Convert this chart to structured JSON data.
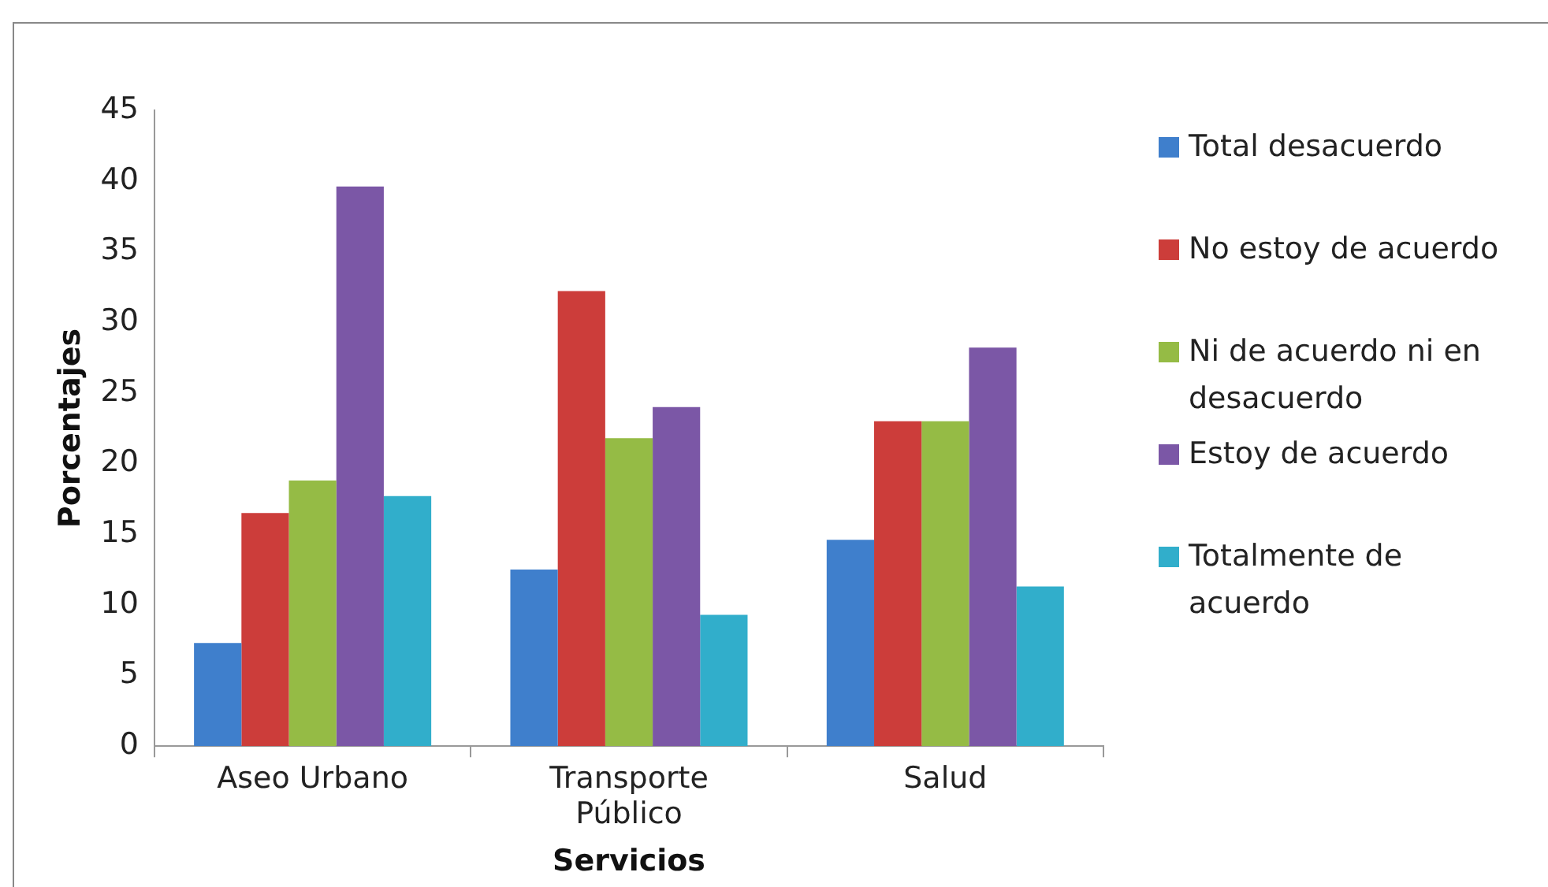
{
  "chart_data": {
    "type": "bar",
    "xlabel": "Servicios",
    "ylabel": "Porcentajes",
    "categories": [
      "Aseo Urbano",
      "Transporte Público",
      "Salud"
    ],
    "series": [
      {
        "name": "Total desacuerdo",
        "color": "#3f7fcc",
        "values": [
          7.3,
          12.5,
          14.6
        ]
      },
      {
        "name": "No estoy de acuerdo",
        "color": "#cc3d3a",
        "values": [
          16.5,
          32.2,
          23.0
        ]
      },
      {
        "name": "Ni de acuerdo ni en desacuerdo",
        "color": "#95bb45",
        "values": [
          18.8,
          21.8,
          23.0
        ]
      },
      {
        "name": "Estoy de acuerdo",
        "color": "#7b57a6",
        "values": [
          39.6,
          24.0,
          28.2
        ]
      },
      {
        "name": "Totalmente de acuerdo",
        "color": "#31aecb",
        "values": [
          17.7,
          9.3,
          11.3
        ]
      }
    ],
    "ylim": [
      0,
      45
    ],
    "yticks": [
      0,
      5,
      10,
      15,
      20,
      25,
      30,
      35,
      40,
      45
    ],
    "grid": false,
    "legend": "right"
  }
}
